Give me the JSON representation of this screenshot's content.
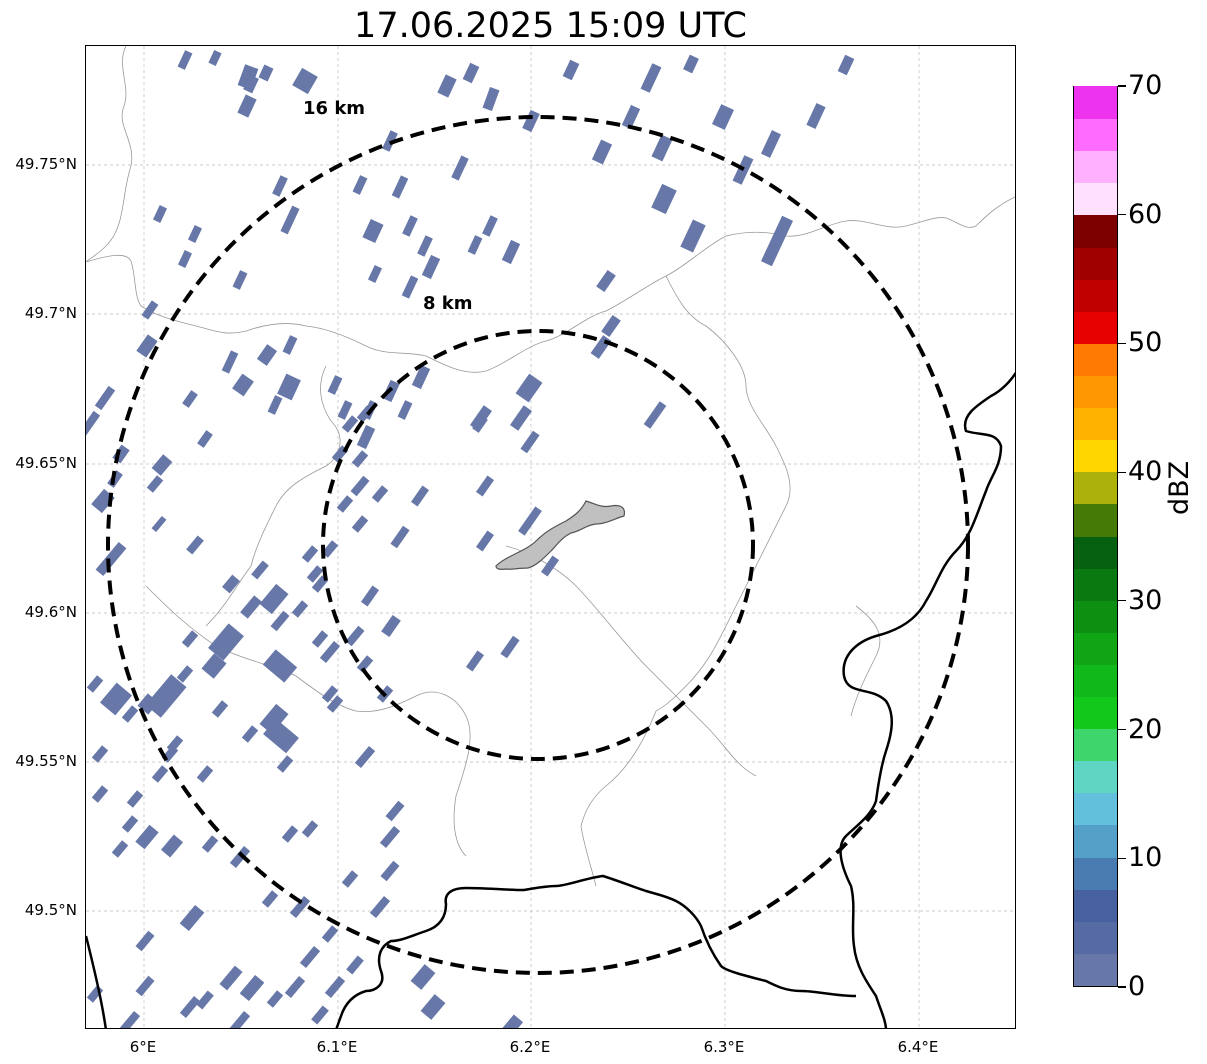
{
  "title": "17.06.2025 15:09 UTC",
  "map": {
    "lat_labels": [
      "49.75°N",
      "49.7°N",
      "49.65°N",
      "49.6°N",
      "49.55°N",
      "49.5°N"
    ],
    "lon_labels": [
      "6°E",
      "6.1°E",
      "6.2°E",
      "6.3°E",
      "6.4°E"
    ],
    "range_rings": [
      {
        "label": "8 km",
        "radius_km": 8
      },
      {
        "label": "16 km",
        "radius_km": 16
      }
    ],
    "ring_style": "dashed black",
    "gridlines": true,
    "precip_color": "#6677a8",
    "town_fill": "#c0c0c0",
    "border_color": "#000000",
    "admin_line_color": "#999999"
  },
  "colorbar": {
    "title": "dBZ",
    "tick_labels": [
      "0",
      "10",
      "20",
      "30",
      "40",
      "50",
      "60",
      "70"
    ],
    "min": 0,
    "max": 70,
    "step": 2.5,
    "colors": [
      "#6677a8",
      "#566ba3",
      "#4660a0",
      "#4a7bb0",
      "#55a0c8",
      "#63c0dc",
      "#5fd6c3",
      "#3ed66a",
      "#12c81b",
      "#10b81a",
      "#0fa514",
      "#0d9012",
      "#0a7a10",
      "#056010",
      "#457a07",
      "#adb20a",
      "#ffd700",
      "#ffb300",
      "#ff9800",
      "#ff7a00",
      "#e60000",
      "#c00000",
      "#a00000",
      "#7d0000",
      "#ffe0ff",
      "#ffb0ff",
      "#ff6cff",
      "#ee33ee"
    ]
  }
}
